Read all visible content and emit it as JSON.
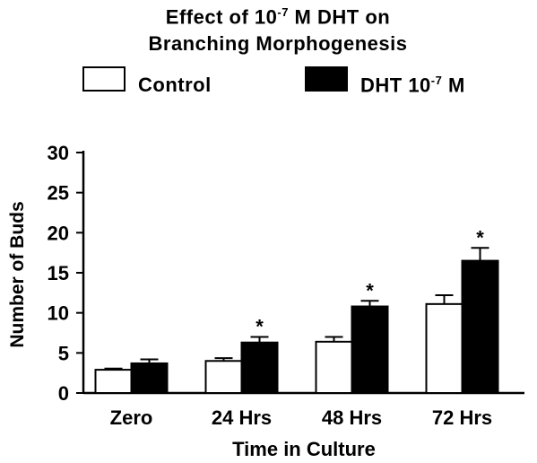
{
  "title": {
    "line1_prefix": "Effect of 10",
    "line1_exp": "-7",
    "line1_suffix": " M DHT on",
    "line2": "Branching Morphogenesis"
  },
  "legend": {
    "control_label": "Control",
    "dht_prefix": "DHT 10",
    "dht_exp": "-7",
    "dht_suffix": " M"
  },
  "chart_data": {
    "type": "bar",
    "xlabel": "Time in Culture",
    "ylabel": "Number of Buds",
    "ylim": [
      0,
      30
    ],
    "yticks": [
      0,
      5,
      10,
      15,
      20,
      25,
      30
    ],
    "categories": [
      "Zero",
      "24 Hrs",
      "48 Hrs",
      "72 Hrs"
    ],
    "series": [
      {
        "name": "Control",
        "values": [
          2.9,
          4.0,
          6.4,
          11.1
        ],
        "errors": [
          0.15,
          0.35,
          0.6,
          1.1
        ],
        "color": "#ffffff"
      },
      {
        "name": "DHT 10-7 M",
        "values": [
          3.7,
          6.3,
          10.8,
          16.5
        ],
        "errors": [
          0.5,
          0.7,
          0.7,
          1.6
        ],
        "color": "#000000"
      }
    ],
    "significance": [
      "",
      "*",
      "*",
      "*"
    ],
    "grid": false,
    "legend_position": "top"
  }
}
